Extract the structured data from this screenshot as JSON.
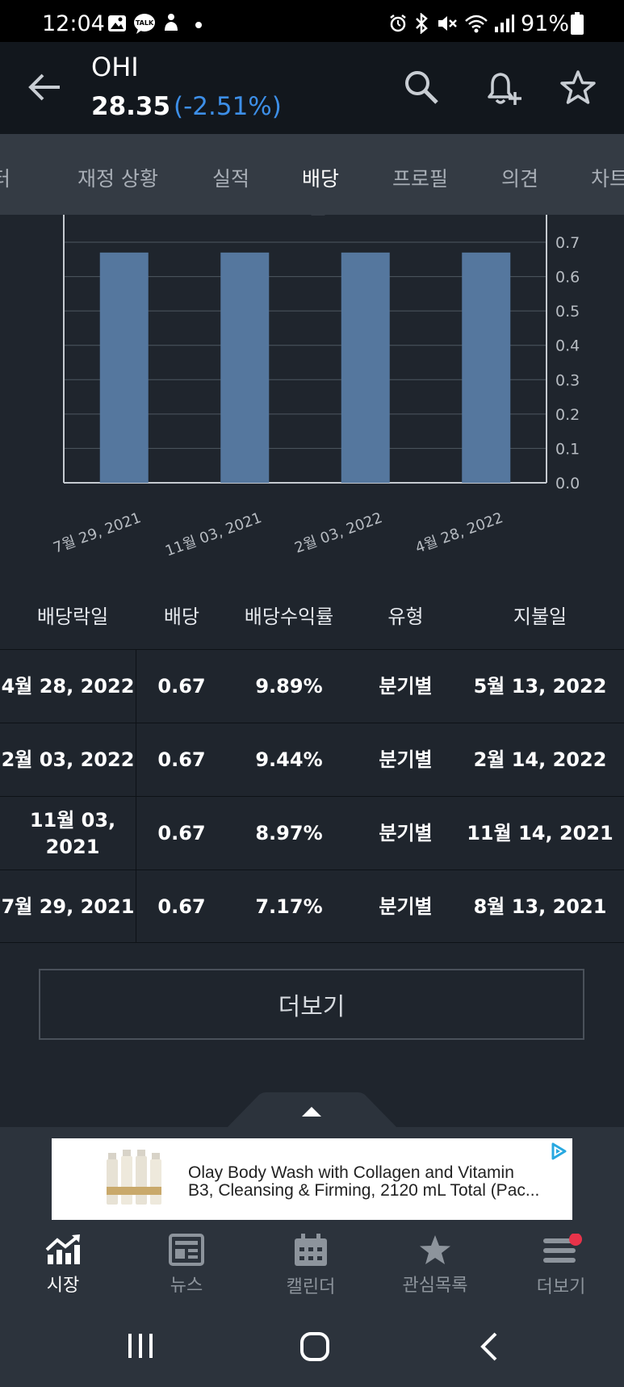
{
  "status_bar": {
    "time": "12:04",
    "battery": "91%",
    "icons": [
      "gallery-icon",
      "kakaotalk-icon",
      "notification-icon",
      "dot-icon",
      "alarm-icon",
      "bluetooth-icon",
      "mute-icon",
      "wifi-icon",
      "signal-icon",
      "battery-icon"
    ],
    "kakao_label": "TALK"
  },
  "header": {
    "ticker": "OHI",
    "price": "28.35",
    "change": "(-2.51%)",
    "change_color": "#3d8fe8"
  },
  "tabs": [
    {
      "label": "터",
      "active": false
    },
    {
      "label": "재정 상황",
      "active": false
    },
    {
      "label": "실적",
      "active": false
    },
    {
      "label": "배당",
      "active": true
    },
    {
      "label": "프로필",
      "active": false
    },
    {
      "label": "의견",
      "active": false
    },
    {
      "label": "차트",
      "active": false
    }
  ],
  "chart_data": {
    "type": "bar",
    "categories": [
      "7월 29, 2021",
      "11월 03, 2021",
      "2월 03, 2022",
      "4월 28, 2022"
    ],
    "values": [
      0.67,
      0.67,
      0.67,
      0.67
    ],
    "y_ticks": [
      "0.0",
      "0.1",
      "0.2",
      "0.3",
      "0.4",
      "0.5",
      "0.6",
      "0.7"
    ],
    "ylim": [
      0,
      0.78
    ],
    "bar_color": "#55779e",
    "grid": true,
    "y_axis_side": "right"
  },
  "table": {
    "headers": [
      "배당락일",
      "배당",
      "배당수익률",
      "유형",
      "지불일"
    ],
    "rows": [
      [
        "4월 28, 2022",
        "0.67",
        "9.89%",
        "분기별",
        "5월 13, 2022"
      ],
      [
        "2월 03, 2022",
        "0.67",
        "9.44%",
        "분기별",
        "2월 14, 2022"
      ],
      [
        "11월 03, 2021",
        "0.67",
        "8.97%",
        "분기별",
        "11월 14, 2021"
      ],
      [
        "7월 29, 2021",
        "0.67",
        "7.17%",
        "분기별",
        "8월 13, 2021"
      ]
    ]
  },
  "more_button": "더보기",
  "ad": {
    "line1": "Olay Body Wash with Collagen and Vitamin",
    "line2": "B3, Cleansing & Firming, 2120 mL Total (Pac..."
  },
  "bottom_nav": [
    {
      "label": "시장",
      "icon": "market-chart-icon",
      "active": true
    },
    {
      "label": "뉴스",
      "icon": "news-icon",
      "active": false
    },
    {
      "label": "캘린더",
      "icon": "calendar-icon",
      "active": false
    },
    {
      "label": "관심목록",
      "icon": "star-icon",
      "active": false
    },
    {
      "label": "더보기",
      "icon": "menu-icon",
      "active": false,
      "badge": true
    }
  ],
  "accent_colors": {
    "negative": "#3d8fe8",
    "badge": "#e8334a",
    "bar": "#55779e"
  }
}
